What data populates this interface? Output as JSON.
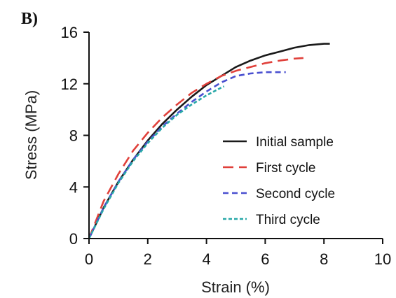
{
  "panel_label": "B)",
  "chart_data": {
    "type": "line",
    "title": "",
    "xlabel": "Strain (%)",
    "ylabel": "Stress (MPa)",
    "xlim": [
      0,
      10
    ],
    "ylim": [
      0,
      16
    ],
    "x_ticks": [
      0,
      2,
      4,
      6,
      8,
      10
    ],
    "y_ticks": [
      0,
      4,
      8,
      12,
      16
    ],
    "grid": false,
    "legend_position": "bottom-right",
    "series": [
      {
        "name": "Initial sample",
        "color": "#1a1a1a",
        "dash": "solid",
        "x": [
          0,
          0.5,
          1,
          1.5,
          2,
          2.5,
          3,
          3.5,
          4,
          4.5,
          5,
          5.5,
          6,
          6.5,
          7,
          7.5,
          8,
          8.2
        ],
        "y": [
          0,
          2.4,
          4.4,
          6.1,
          7.6,
          8.9,
          10.0,
          11.0,
          11.9,
          12.6,
          13.3,
          13.8,
          14.2,
          14.5,
          14.8,
          15.0,
          15.1,
          15.1
        ]
      },
      {
        "name": "First cycle",
        "color": "#e0403a",
        "dash": "long-dash",
        "x": [
          0,
          0.5,
          1,
          1.5,
          2,
          2.5,
          3,
          3.5,
          4,
          4.5,
          5,
          5.5,
          6,
          6.5,
          7,
          7.3
        ],
        "y": [
          0,
          2.9,
          5.0,
          6.8,
          8.2,
          9.4,
          10.4,
          11.3,
          12.0,
          12.6,
          13.0,
          13.3,
          13.6,
          13.8,
          13.95,
          14.0
        ]
      },
      {
        "name": "Second cycle",
        "color": "#4a50d0",
        "dash": "dash",
        "x": [
          0,
          0.5,
          1,
          1.5,
          2,
          2.5,
          3,
          3.5,
          4,
          4.5,
          5,
          5.5,
          6,
          6.5,
          6.7
        ],
        "y": [
          0,
          2.4,
          4.4,
          6.1,
          7.5,
          8.7,
          9.7,
          10.6,
          11.4,
          12.1,
          12.6,
          12.8,
          12.9,
          12.9,
          12.9
        ]
      },
      {
        "name": "Third cycle",
        "color": "#28a8a8",
        "dash": "short-dash",
        "x": [
          0,
          0.5,
          1,
          1.5,
          2,
          2.5,
          3,
          3.5,
          4,
          4.5,
          4.6
        ],
        "y": [
          0,
          2.3,
          4.3,
          6.0,
          7.4,
          8.6,
          9.6,
          10.4,
          11.1,
          11.7,
          11.8
        ]
      }
    ]
  }
}
